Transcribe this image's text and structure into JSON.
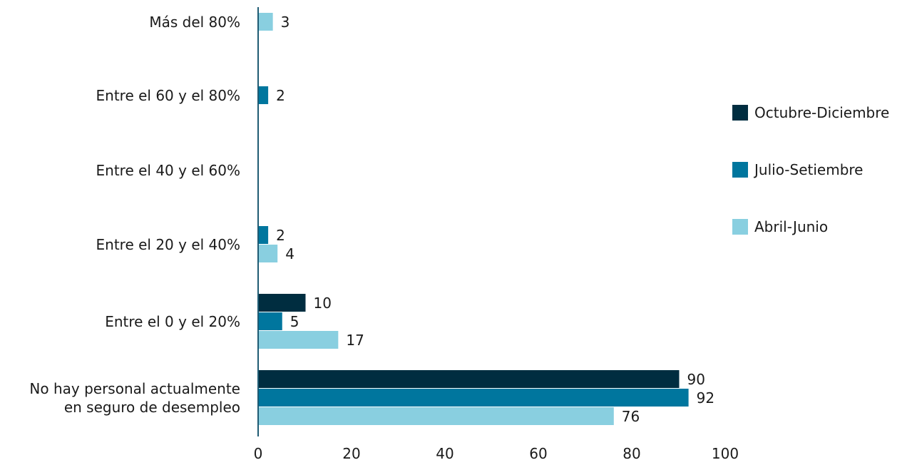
{
  "chart_data": {
    "type": "bar",
    "orientation": "horizontal",
    "title": "",
    "xlabel": "",
    "ylabel": "",
    "xlim": [
      0,
      100
    ],
    "x_ticks": [
      "0",
      "20",
      "40",
      "60",
      "80",
      "100"
    ],
    "grid": false,
    "legend_position": "right",
    "categories": [
      "Más del 80%",
      "Entre el 60 y el 80%",
      "Entre el 40 y el 60%",
      "Entre el 20 y el 40%",
      "Entre el 0 y el 20%",
      "No hay personal actualmente en seguro de desempleo"
    ],
    "category_lines": [
      [
        "Más del 80%"
      ],
      [
        "Entre el 60 y el 80%"
      ],
      [
        "Entre el 40 y el 60%"
      ],
      [
        "Entre el 20 y el 40%"
      ],
      [
        "Entre el 0 y el 20%"
      ],
      [
        "No hay personal actualmente",
        "en seguro de desempleo"
      ]
    ],
    "series": [
      {
        "name": "Octubre-Diciembre",
        "color": "#002d40",
        "values": [
          null,
          null,
          null,
          null,
          10,
          90
        ],
        "labels": [
          "",
          "",
          "",
          "",
          "10",
          "90"
        ]
      },
      {
        "name": "Julio-Setiembre",
        "color": "#00769e",
        "values": [
          null,
          2,
          null,
          2,
          5,
          92
        ],
        "labels": [
          "",
          "2",
          "",
          "2",
          "5",
          "92"
        ]
      },
      {
        "name": "Abril-Junio",
        "color": "#89cfe0",
        "values": [
          3,
          null,
          null,
          4,
          17,
          76
        ],
        "labels": [
          "3",
          "",
          "",
          "4",
          "17",
          "76"
        ]
      }
    ]
  }
}
